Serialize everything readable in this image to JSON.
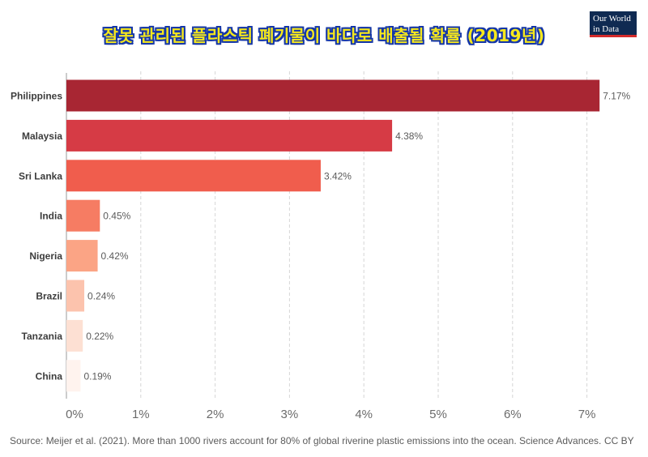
{
  "title": "잘못 관리된 플라스틱 폐기물이 바다로 배출될 확률 (2019년)",
  "logo": {
    "line1": "Our World",
    "line2": "in Data"
  },
  "source": "Source: Meijer et al. (2021). More than 1000 rivers account for 80% of global riverine plastic emissions into the ocean. Science Advances.",
  "license": "CC BY",
  "chart_data": {
    "type": "bar",
    "orientation": "horizontal",
    "categories": [
      "Philippines",
      "Malaysia",
      "Sri Lanka",
      "India",
      "Nigeria",
      "Brazil",
      "Tanzania",
      "China"
    ],
    "values": [
      7.17,
      4.38,
      3.42,
      0.45,
      0.42,
      0.24,
      0.22,
      0.19
    ],
    "value_labels": [
      "7.17%",
      "4.38%",
      "3.42%",
      "0.45%",
      "0.42%",
      "0.24%",
      "0.22%",
      "0.19%"
    ],
    "colors": [
      "#a82633",
      "#d63b45",
      "#f05d4d",
      "#f67c63",
      "#fba485",
      "#fcc3ad",
      "#fde0d3",
      "#fff3ee"
    ],
    "xlim": [
      0,
      7.3
    ],
    "xticks": [
      0,
      1,
      2,
      3,
      4,
      5,
      6,
      7
    ],
    "xtick_labels": [
      "0%",
      "1%",
      "2%",
      "3%",
      "4%",
      "5%",
      "6%",
      "7%"
    ],
    "grid": "vertical dashed"
  }
}
